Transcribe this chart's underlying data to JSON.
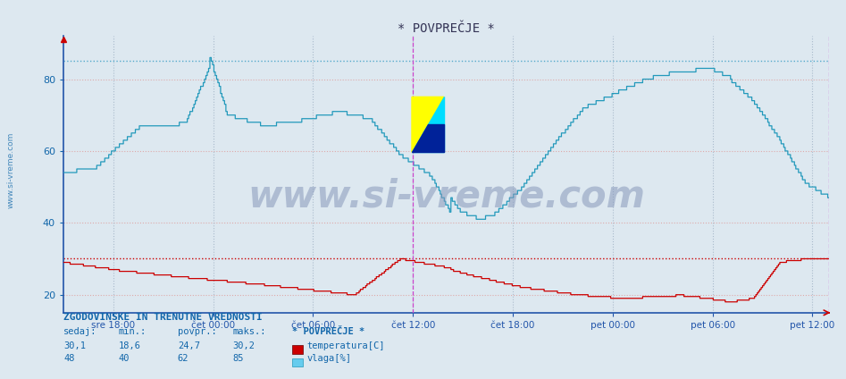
{
  "title": "* POVPREČJE *",
  "bg_color": "#dde8f0",
  "plot_bg_color": "#dde8f0",
  "temp_color": "#cc0000",
  "vlaga_color": "#2299bb",
  "temp_dotted_color": "#cc0000",
  "vlaga_dotted_color": "#55aacc",
  "grid_color_h": "#f0aaaa",
  "grid_color_v": "#aabbcc",
  "axis_color": "#2255aa",
  "text_color": "#1166aa",
  "ylim_min": 15,
  "ylim_max": 92,
  "yticks": [
    20,
    40,
    60,
    80
  ],
  "xlabels": [
    "sre 18:00",
    "čet 00:00",
    "čet 06:00",
    "čet 12:00",
    "čet 18:00",
    "pet 00:00",
    "pet 06:00",
    "pet 12:00"
  ],
  "watermark": "www.si-vreme.com",
  "watermark_color": "#8899bb",
  "sidebar_text": "www.si-vreme.com",
  "sidebar_color": "#4488bb",
  "stats_title": "ZGODOVINSKE IN TRENUTNE VREDNOSTI",
  "temp_stats": [
    "30,1",
    "18,6",
    "24,7",
    "30,2"
  ],
  "vlaga_stats": [
    "48",
    "40",
    "62",
    "85"
  ],
  "temp_label": "temperatura[C]",
  "vlaga_label": "vlaga[%]",
  "temp_max_line": 30.2,
  "vlaga_max_line": 85,
  "vline_pos": 0.5,
  "title_color": "#333355"
}
